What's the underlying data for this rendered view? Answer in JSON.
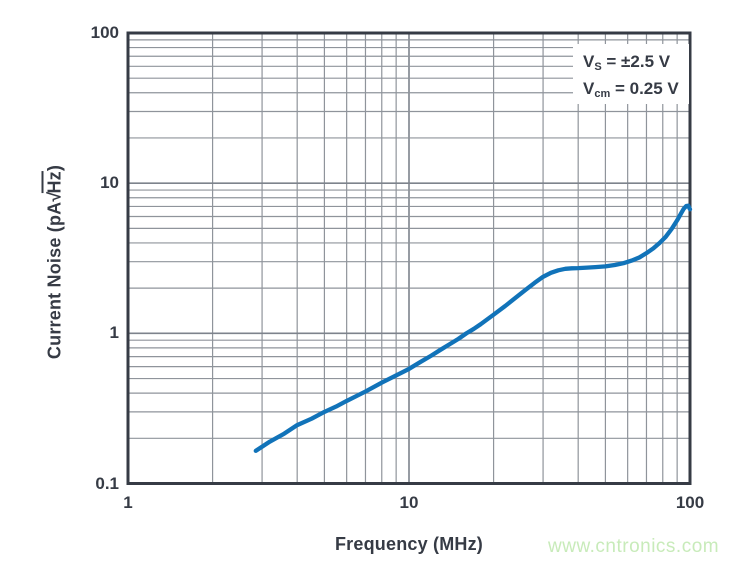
{
  "colors": {
    "curve": "#1173b9",
    "grid": "#8f949b",
    "grid_major": "#7d838c",
    "frame": "#363b45",
    "text": "#363b45",
    "annotation_bg": "#ffffff",
    "watermark": "#c8ebba"
  },
  "figure": {
    "watermark": "www.cntronics.com",
    "annotation": {
      "lines": [
        {
          "base": "V",
          "sub": "S",
          "rest": " = ±2.5 V"
        },
        {
          "base": "V",
          "sub": "cm",
          "rest": " = 0.25 V"
        }
      ]
    }
  },
  "chart_data": {
    "type": "line",
    "title": "",
    "xlabel": "Frequency (MHz)",
    "ylabel": {
      "prefix": "Current Noise (pA",
      "sqrt": "√",
      "radicand": "Hz",
      "suffix": ")"
    },
    "x_scale": "log",
    "y_scale": "log",
    "xlim": [
      1,
      100
    ],
    "ylim": [
      0.1,
      100
    ],
    "grid": "major and minor log gridlines, full frame",
    "legend": "none",
    "x_ticks": [
      {
        "v": 1,
        "label": "1"
      },
      {
        "v": 10,
        "label": "10"
      },
      {
        "v": 100,
        "label": "100"
      }
    ],
    "y_ticks": [
      {
        "v": 0.1,
        "label": "0.1"
      },
      {
        "v": 1,
        "label": "1"
      },
      {
        "v": 10,
        "label": "10"
      },
      {
        "v": 100,
        "label": "100"
      }
    ],
    "series": [
      {
        "name": "current-noise",
        "units": {
          "x": "MHz",
          "y": "pA/√Hz"
        },
        "points": [
          [
            2.85,
            0.165
          ],
          [
            3.2,
            0.19
          ],
          [
            3.6,
            0.215
          ],
          [
            4,
            0.245
          ],
          [
            4.5,
            0.27
          ],
          [
            5,
            0.3
          ],
          [
            5.5,
            0.325
          ],
          [
            6,
            0.355
          ],
          [
            7,
            0.41
          ],
          [
            8,
            0.47
          ],
          [
            9,
            0.525
          ],
          [
            10,
            0.58
          ],
          [
            11,
            0.645
          ],
          [
            12,
            0.71
          ],
          [
            13,
            0.78
          ],
          [
            14,
            0.85
          ],
          [
            15,
            0.92
          ],
          [
            16,
            1.0
          ],
          [
            17,
            1.07
          ],
          [
            18,
            1.15
          ],
          [
            19,
            1.24
          ],
          [
            20,
            1.33
          ],
          [
            22,
            1.52
          ],
          [
            24,
            1.73
          ],
          [
            26,
            1.95
          ],
          [
            28,
            2.17
          ],
          [
            30,
            2.38
          ],
          [
            32,
            2.53
          ],
          [
            34,
            2.63
          ],
          [
            36,
            2.69
          ],
          [
            38,
            2.71
          ],
          [
            40,
            2.72
          ],
          [
            43,
            2.74
          ],
          [
            46,
            2.76
          ],
          [
            50,
            2.79
          ],
          [
            54,
            2.85
          ],
          [
            58,
            2.93
          ],
          [
            62,
            3.05
          ],
          [
            66,
            3.2
          ],
          [
            70,
            3.42
          ],
          [
            74,
            3.68
          ],
          [
            78,
            4.0
          ],
          [
            82,
            4.4
          ],
          [
            86,
            4.95
          ],
          [
            90,
            5.65
          ],
          [
            93,
            6.3
          ],
          [
            95,
            6.75
          ],
          [
            97,
            7.05
          ],
          [
            98.5,
            7.08
          ],
          [
            100,
            6.7
          ]
        ]
      }
    ]
  }
}
